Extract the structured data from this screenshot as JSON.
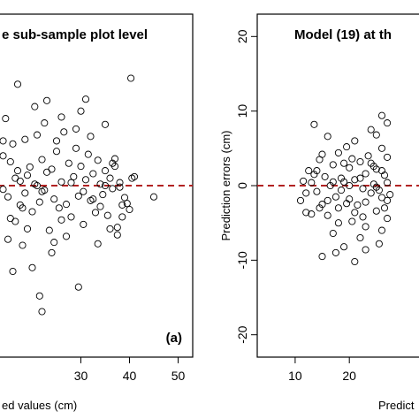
{
  "chart_data": [
    {
      "type": "scatter",
      "title": "e sub-sample plot level",
      "panel_tag": "(a)",
      "xlabel": "ed values (cm)",
      "ylabel": "",
      "xlim": [
        13,
        53
      ],
      "ylim": [
        -23,
        23
      ],
      "xticks": [
        "30",
        "40",
        "50"
      ],
      "yticks": [],
      "reference_line": 0,
      "grid": false,
      "points": [
        [
          14,
          4.0
        ],
        [
          15,
          -1.5
        ],
        [
          16,
          5.6
        ],
        [
          17,
          2.0
        ],
        [
          18,
          -3.0
        ],
        [
          19,
          1.4
        ],
        [
          14,
          -0.5
        ],
        [
          15.5,
          3.2
        ],
        [
          16.5,
          -4.8
        ],
        [
          17.5,
          0.6
        ],
        [
          18.5,
          -1.0
        ],
        [
          19.5,
          2.5
        ],
        [
          20,
          -3.5
        ],
        [
          20.5,
          0.2
        ],
        [
          21,
          6.8
        ],
        [
          21.5,
          -2.2
        ],
        [
          22,
          3.5
        ],
        [
          22.5,
          -0.6
        ],
        [
          23,
          1.8
        ],
        [
          23.5,
          -6.0
        ],
        [
          24,
          2.2
        ],
        [
          24.5,
          -1.8
        ],
        [
          25,
          4.6
        ],
        [
          25.5,
          -3.0
        ],
        [
          26,
          0.5
        ],
        [
          26.5,
          7.2
        ],
        [
          27,
          -2.5
        ],
        [
          27.5,
          3.0
        ],
        [
          28,
          -4.2
        ],
        [
          28.5,
          1.2
        ],
        [
          29,
          5.0
        ],
        [
          29.5,
          -1.4
        ],
        [
          30,
          2.6
        ],
        [
          30.5,
          -5.2
        ],
        [
          31,
          0.8
        ],
        [
          31.5,
          4.2
        ],
        [
          32,
          -2.0
        ],
        [
          32.5,
          1.6
        ],
        [
          33,
          -3.6
        ],
        [
          33.5,
          3.4
        ],
        [
          34,
          0.2
        ],
        [
          34.5,
          -1.2
        ],
        [
          35,
          2.0
        ],
        [
          35.5,
          -4.0
        ],
        [
          36,
          1.0
        ],
        [
          36.5,
          -0.4
        ],
        [
          37,
          3.6
        ],
        [
          37.5,
          -6.6
        ],
        [
          38,
          0.4
        ],
        [
          38.5,
          -2.6
        ],
        [
          39,
          -1.6
        ],
        [
          40,
          -3.2
        ],
        [
          40.5,
          1.0
        ],
        [
          17,
          13.6
        ],
        [
          20.5,
          10.6
        ],
        [
          23,
          11.4
        ],
        [
          26,
          9.2
        ],
        [
          30,
          10.0
        ],
        [
          31,
          11.6
        ],
        [
          35,
          8.2
        ],
        [
          40.3,
          14.4
        ],
        [
          18,
          -8.0
        ],
        [
          20,
          -11.0
        ],
        [
          21.5,
          -14.8
        ],
        [
          22,
          -16.9
        ],
        [
          29.5,
          -13.6
        ],
        [
          24,
          -9.0
        ],
        [
          33.5,
          -7.8
        ],
        [
          37.5,
          -5.6
        ],
        [
          45,
          -1.5
        ],
        [
          14.5,
          9.0
        ],
        [
          15,
          -7.2
        ],
        [
          16,
          -11.5
        ],
        [
          18.5,
          6.2
        ],
        [
          19,
          -5.8
        ],
        [
          22.5,
          8.4
        ],
        [
          24.5,
          -7.6
        ],
        [
          27,
          -6.8
        ],
        [
          29,
          7.6
        ],
        [
          32,
          6.6
        ],
        [
          36,
          -5.8
        ],
        [
          38.5,
          -4.2
        ],
        [
          39.5,
          -2.4
        ],
        [
          41,
          1.2
        ],
        [
          37,
          2.6
        ],
        [
          14,
          6.0
        ],
        [
          15.5,
          -4.4
        ],
        [
          16.5,
          1.0
        ],
        [
          17.5,
          -2.6
        ],
        [
          25,
          6.0
        ],
        [
          26,
          -4.6
        ],
        [
          28,
          0.4
        ],
        [
          30.5,
          -0.8
        ],
        [
          32.5,
          -1.8
        ],
        [
          34,
          -2.8
        ],
        [
          35,
          0.0
        ],
        [
          36.5,
          3.0
        ],
        [
          38,
          -0.2
        ],
        [
          21,
          0.0
        ],
        [
          22,
          -0.8
        ]
      ]
    },
    {
      "type": "scatter",
      "title": "Model (19) at th",
      "panel_tag": "",
      "xlabel": "Predict",
      "ylabel": "Prediction errors (cm)",
      "xlim": [
        3,
        34
      ],
      "ylim": [
        -23,
        23
      ],
      "xticks": [
        "10",
        "20"
      ],
      "yticks": [
        "20",
        "10",
        "0",
        "-10",
        "-20"
      ],
      "reference_line": 0,
      "grid": false,
      "points": [
        [
          11,
          -2.0
        ],
        [
          11.5,
          0.6
        ],
        [
          12,
          -1.0
        ],
        [
          12.5,
          2.0
        ],
        [
          13,
          -3.8
        ],
        [
          13.5,
          8.2
        ],
        [
          13.5,
          1.5
        ],
        [
          14,
          -0.8
        ],
        [
          14.5,
          3.5
        ],
        [
          15,
          -2.5
        ],
        [
          15.5,
          1.2
        ],
        [
          16,
          6.6
        ],
        [
          16,
          -4.0
        ],
        [
          16.5,
          0.0
        ],
        [
          17,
          2.8
        ],
        [
          17,
          -6.4
        ],
        [
          17.5,
          -1.5
        ],
        [
          18,
          4.4
        ],
        [
          18,
          -3.0
        ],
        [
          18.5,
          1.0
        ],
        [
          19,
          -8.2
        ],
        [
          19,
          0.5
        ],
        [
          19.5,
          5.2
        ],
        [
          20,
          -1.8
        ],
        [
          20,
          2.4
        ],
        [
          20.5,
          -4.8
        ],
        [
          21,
          0.8
        ],
        [
          21,
          6.0
        ],
        [
          21.5,
          -2.6
        ],
        [
          22,
          3.2
        ],
        [
          22,
          -7.0
        ],
        [
          22.5,
          -0.4
        ],
        [
          23,
          1.6
        ],
        [
          23,
          -5.5
        ],
        [
          23.5,
          4.0
        ],
        [
          24,
          -1.0
        ],
        [
          24,
          7.5
        ],
        [
          24.5,
          0.2
        ],
        [
          25,
          -3.4
        ],
        [
          25,
          2.2
        ],
        [
          25.5,
          -0.6
        ],
        [
          26,
          5.0
        ],
        [
          26,
          -6.0
        ],
        [
          26.5,
          1.4
        ],
        [
          27,
          -2.0
        ],
        [
          27,
          3.8
        ],
        [
          27.5,
          -1.2
        ],
        [
          27,
          8.4
        ],
        [
          26,
          9.4
        ],
        [
          25,
          6.8
        ],
        [
          14.5,
          -3.0
        ],
        [
          15,
          4.2
        ],
        [
          16,
          -2.0
        ],
        [
          17,
          0.5
        ],
        [
          18,
          -5.0
        ],
        [
          19,
          3.0
        ],
        [
          20,
          0.0
        ],
        [
          21,
          -3.6
        ],
        [
          22,
          1.0
        ],
        [
          23,
          -2.2
        ],
        [
          24,
          3.0
        ],
        [
          25,
          -0.2
        ],
        [
          26,
          2.0
        ],
        [
          26.5,
          -3.0
        ],
        [
          27,
          0.4
        ],
        [
          15,
          -9.5
        ],
        [
          17.5,
          -9.0
        ],
        [
          21,
          -10.2
        ],
        [
          23,
          -8.6
        ],
        [
          25.5,
          -7.8
        ],
        [
          12,
          -3.6
        ],
        [
          13,
          0.4
        ],
        [
          14,
          2.0
        ],
        [
          18.5,
          -0.6
        ],
        [
          19.5,
          -2.4
        ],
        [
          20.5,
          3.6
        ],
        [
          22.5,
          -4.2
        ],
        [
          24.5,
          2.6
        ],
        [
          26,
          -1.6
        ],
        [
          27,
          -4.4
        ]
      ]
    }
  ]
}
